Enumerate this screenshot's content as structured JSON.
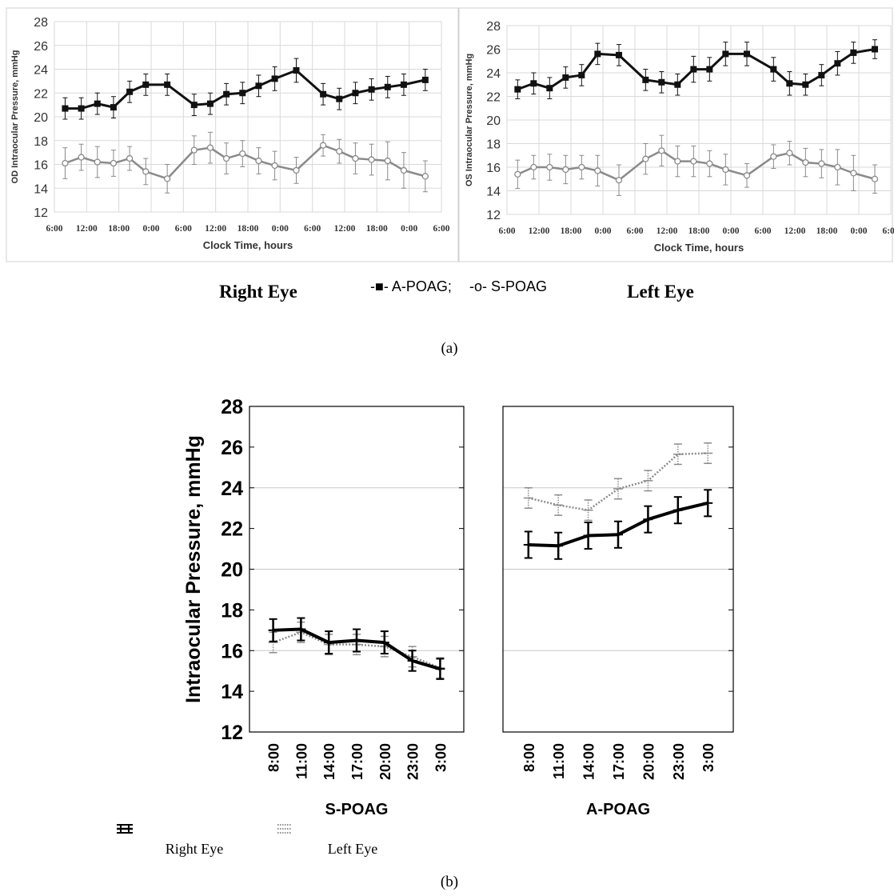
{
  "figure": {
    "label_a": "(a)",
    "label_b": "(b)",
    "caption_right_eye": "Right Eye",
    "caption_left_eye": "Left Eye",
    "legend_a_apoag": "-■- A-POAG;",
    "legend_a_spoag": "-o- S-POAG",
    "legend_b_right": "Right Eye",
    "legend_b_left": "Left Eye"
  },
  "colors": {
    "apoag_a": "#111111",
    "spoag_a": "#8a8a8a",
    "right_eye_b": "#000000",
    "left_eye_b": "#8c8c8c",
    "grid": "#d9d9d9",
    "frame": "#d0d0d0"
  },
  "chart_data": [
    {
      "id": "a-right",
      "type": "line",
      "ylabel": "OD Intraocular Pressure, mmHg",
      "xlabel": "Clock Time, hours",
      "ylim": [
        12,
        28
      ],
      "yticks": [
        "12",
        "14",
        "16",
        "18",
        "20",
        "22",
        "24",
        "26",
        "28"
      ],
      "xlim": [
        6,
        78
      ],
      "xticks": [
        "6:00",
        "12:00",
        "18:00",
        "0:00",
        "6:00",
        "12:00",
        "18:00",
        "0:00",
        "6:00",
        "12:00",
        "18:00",
        "0:00",
        "6:00"
      ],
      "grid": true,
      "x_hours": [
        8,
        11,
        14,
        17,
        20,
        23,
        27,
        32,
        35,
        38,
        41,
        44,
        47,
        51,
        56,
        59,
        62,
        65,
        68,
        71,
        75
      ],
      "series": [
        {
          "name": "A-POAG",
          "marker": "square",
          "values": [
            20.7,
            20.7,
            21.1,
            20.8,
            22.1,
            22.7,
            22.7,
            21.0,
            21.1,
            21.9,
            22.0,
            22.6,
            23.2,
            23.9,
            21.9,
            21.5,
            22.0,
            22.3,
            22.5,
            22.7,
            23.1
          ],
          "errors": [
            0.9,
            0.9,
            0.9,
            0.9,
            0.9,
            0.9,
            0.9,
            0.9,
            0.9,
            0.9,
            0.9,
            0.9,
            1.0,
            1.0,
            0.9,
            0.9,
            0.9,
            0.9,
            0.9,
            0.9,
            0.9
          ]
        },
        {
          "name": "S-POAG",
          "marker": "circle",
          "values": [
            16.1,
            16.6,
            16.2,
            16.1,
            16.5,
            15.4,
            14.8,
            17.2,
            17.4,
            16.5,
            16.9,
            16.3,
            15.9,
            15.5,
            17.6,
            17.1,
            16.5,
            16.4,
            16.3,
            15.5,
            15.0
          ],
          "errors": [
            1.3,
            1.1,
            1.3,
            1.1,
            1.0,
            1.1,
            1.2,
            1.2,
            1.3,
            1.3,
            1.1,
            1.1,
            1.2,
            1.1,
            0.9,
            1.0,
            1.3,
            1.3,
            1.6,
            1.5,
            1.3
          ]
        }
      ]
    },
    {
      "id": "a-left",
      "type": "line",
      "ylabel": "OS Intraocular Pressure, mmHg",
      "xlabel": "Clock Time, hours",
      "ylim": [
        12,
        28
      ],
      "yticks": [
        "12",
        "14",
        "16",
        "18",
        "20",
        "22",
        "24",
        "26",
        "28"
      ],
      "xlim": [
        6,
        78
      ],
      "xticks": [
        "6:00",
        "12:00",
        "18:00",
        "0:00",
        "6:00",
        "12:00",
        "18:00",
        "0:00",
        "6:00",
        "12:00",
        "18:00",
        "0:00",
        "6:00"
      ],
      "grid": true,
      "x_hours": [
        8,
        11,
        14,
        17,
        20,
        23,
        27,
        32,
        35,
        38,
        41,
        44,
        47,
        51,
        56,
        59,
        62,
        65,
        68,
        71,
        75
      ],
      "series": [
        {
          "name": "A-POAG",
          "marker": "square",
          "values": [
            22.6,
            23.1,
            22.7,
            23.6,
            23.8,
            25.6,
            25.5,
            23.4,
            23.2,
            23.0,
            24.3,
            24.3,
            25.6,
            25.6,
            24.3,
            23.1,
            23.0,
            23.8,
            24.8,
            25.7,
            26.0
          ],
          "errors": [
            0.8,
            0.9,
            0.9,
            0.9,
            0.9,
            0.9,
            0.9,
            0.9,
            0.9,
            0.9,
            1.1,
            1.0,
            1.0,
            1.0,
            1.0,
            1.0,
            0.9,
            0.9,
            1.0,
            0.9,
            0.8
          ]
        },
        {
          "name": "S-POAG",
          "marker": "circle",
          "values": [
            15.4,
            16.0,
            16.0,
            15.8,
            16.0,
            15.7,
            14.9,
            16.7,
            17.4,
            16.5,
            16.5,
            16.3,
            15.8,
            15.3,
            16.9,
            17.2,
            16.4,
            16.3,
            16.0,
            15.5,
            15.0
          ],
          "errors": [
            1.2,
            1.0,
            1.1,
            1.2,
            1.0,
            1.3,
            1.3,
            1.3,
            1.3,
            1.3,
            1.3,
            1.1,
            1.3,
            1.0,
            1.0,
            1.0,
            1.2,
            1.2,
            1.5,
            1.5,
            1.2
          ]
        }
      ]
    },
    {
      "id": "b-spoag",
      "type": "line",
      "ylabel": "Intraocular Pressure, mmHg",
      "xlabel": "S-POAG",
      "ylim": [
        12,
        28
      ],
      "yticks": [
        "12",
        "14",
        "16",
        "18",
        "20",
        "22",
        "24",
        "26",
        "28"
      ],
      "categories": [
        "8:00",
        "11:00",
        "14:00",
        "17:00",
        "20:00",
        "23:00",
        "3:00"
      ],
      "grid": true,
      "series": [
        {
          "name": "Right Eye",
          "style": "solid",
          "values": [
            17.0,
            17.05,
            16.4,
            16.5,
            16.4,
            15.5,
            15.1
          ],
          "errors": [
            0.55,
            0.55,
            0.55,
            0.55,
            0.55,
            0.5,
            0.5
          ]
        },
        {
          "name": "Left Eye",
          "style": "dotted",
          "values": [
            16.4,
            16.9,
            16.3,
            16.3,
            16.2,
            15.7,
            15.15
          ],
          "errors": [
            0.5,
            0.5,
            0.5,
            0.5,
            0.5,
            0.5,
            0.5
          ]
        }
      ]
    },
    {
      "id": "b-apoag",
      "type": "line",
      "xlabel": "A-POAG",
      "ylim": [
        12,
        28
      ],
      "categories": [
        "8:00",
        "11:00",
        "14:00",
        "17:00",
        "20:00",
        "23:00",
        "3:00"
      ],
      "grid": true,
      "series": [
        {
          "name": "Right Eye",
          "style": "solid",
          "values": [
            21.2,
            21.15,
            21.65,
            21.7,
            22.45,
            22.9,
            23.25
          ],
          "errors": [
            0.65,
            0.65,
            0.65,
            0.65,
            0.65,
            0.65,
            0.65
          ]
        },
        {
          "name": "Left Eye",
          "style": "dotted",
          "values": [
            23.5,
            23.15,
            22.9,
            23.95,
            24.35,
            25.65,
            25.7
          ],
          "errors": [
            0.5,
            0.5,
            0.5,
            0.5,
            0.5,
            0.5,
            0.5
          ]
        }
      ]
    }
  ]
}
